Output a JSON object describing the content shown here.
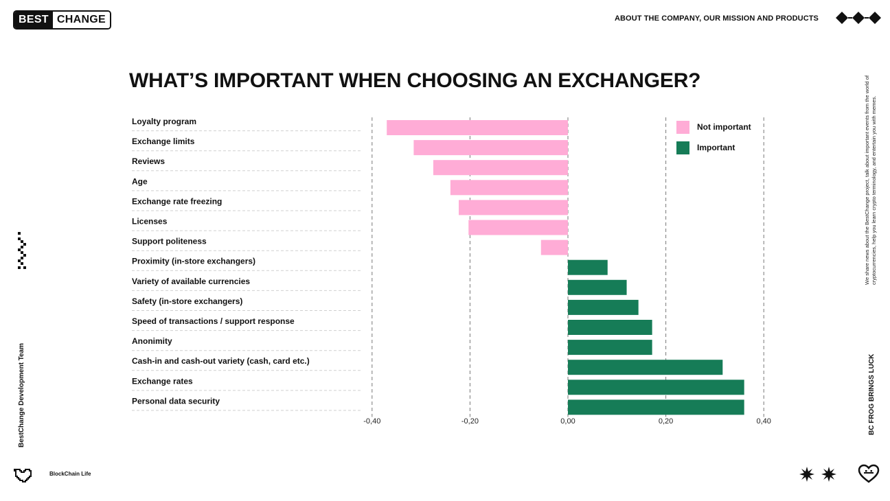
{
  "header": {
    "logo_left": "BEST",
    "logo_right": "CHANGE",
    "nav_text": "ABOUT THE COMPANY, OUR MISSION AND PRODUCTS"
  },
  "side": {
    "left_vertical": "BestChange Development Team",
    "right_vertical_small": "We share news about the BestChange project, talk about important events from the world of cryptocurrencies, help you learn crypto terminology, and entertain you with memes.",
    "right_vertical_bold": "BC FROG BRINGS LUCK",
    "bottom_left": "BlockChain Life"
  },
  "icons": {
    "header_deco": "diamonds-icon",
    "left_deco": "pixel-chain-icon",
    "bottom_left": "pixel-heart-icon",
    "bottom_right_stars": "starburst-icon",
    "bottom_right_heart": "heart-face-icon"
  },
  "colors": {
    "not_important": "#ffacd6",
    "important": "#167c57"
  },
  "chart_data": {
    "type": "bar",
    "orientation": "horizontal",
    "title": "WHAT’S IMPORTANT WHEN CHOOSING AN EXCHANGER?",
    "categories": [
      "Loyalty program",
      "Exchange limits",
      "Reviews",
      "Age",
      "Exchange rate freezing",
      "Licenses",
      "Support politeness",
      "Proximity (in-store exchangers)",
      "Variety of available currencies",
      "Safety (in-store exchangers)",
      "Speed of transactions / support response",
      "Anonimity",
      "Cash-in and cash-out variety (cash, card etc.)",
      "Exchange rates",
      "Personal data security"
    ],
    "values": [
      -0.37,
      -0.315,
      -0.275,
      -0.24,
      -0.223,
      -0.203,
      -0.055,
      0.081,
      0.12,
      0.144,
      0.172,
      0.172,
      0.316,
      0.36,
      0.36
    ],
    "legend": [
      {
        "label": "Not important",
        "color": "#ffacd6"
      },
      {
        "label": "Important",
        "color": "#167c57"
      }
    ],
    "xlim": [
      -0.4,
      0.4
    ],
    "xticks": [
      -0.4,
      -0.2,
      0.0,
      0.2,
      0.4
    ],
    "xtick_labels": [
      "-0,40",
      "-0,20",
      "0,00",
      "0,20",
      "0,40"
    ],
    "grid": "vertical dashed",
    "legend_position": "top-right"
  }
}
